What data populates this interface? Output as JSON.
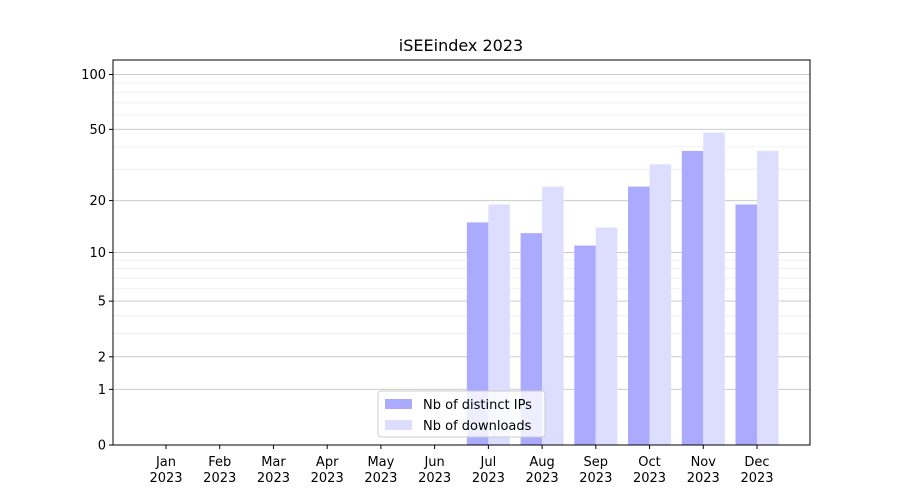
{
  "chart_data": {
    "type": "bar",
    "title": "iSEEindex 2023",
    "xlabel": "",
    "ylabel": "",
    "yscale": "log(1+y)",
    "ylim": [
      0,
      120
    ],
    "yticks": [
      0,
      1,
      2,
      5,
      10,
      20,
      50,
      100
    ],
    "grid": "y (major and minor)",
    "legend_position": "lower-center",
    "categories": [
      "Jan\n2023",
      "Feb\n2023",
      "Mar\n2023",
      "Apr\n2023",
      "May\n2023",
      "Jun\n2023",
      "Jul\n2023",
      "Aug\n2023",
      "Sep\n2023",
      "Oct\n2023",
      "Nov\n2023",
      "Dec\n2023"
    ],
    "series": [
      {
        "name": "Nb of distinct IPs",
        "color": "#aaaaff",
        "values": [
          0,
          0,
          0,
          0,
          0,
          0,
          15,
          13,
          11,
          24,
          38,
          19
        ]
      },
      {
        "name": "Nb of downloads",
        "color": "#ddddff",
        "values": [
          0,
          0,
          0,
          0,
          0,
          0,
          19,
          24,
          14,
          32,
          48,
          38
        ]
      }
    ]
  }
}
